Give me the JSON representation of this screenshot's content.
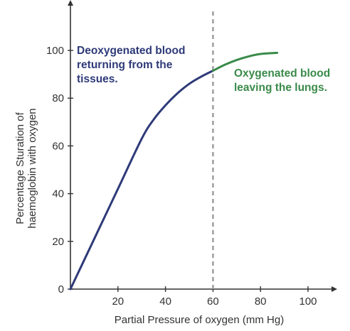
{
  "chart_data": {
    "type": "line",
    "xlabel": "Partial Pressure of oxygen (mm Hg)",
    "ylabel_lines": [
      "Percentage Sturation of",
      "haemoglobin with oxygen"
    ],
    "xlim": [
      0,
      110
    ],
    "ylim": [
      0,
      115
    ],
    "x_ticks": [
      20,
      40,
      60,
      80,
      100
    ],
    "y_ticks": [
      0,
      20,
      40,
      60,
      80,
      100
    ],
    "grid": false,
    "series": [
      {
        "color": "#2e3a78",
        "x": [
          0,
          10,
          20,
          30,
          35,
          40,
          45,
          50,
          55,
          60
        ],
        "y": [
          0,
          21,
          42,
          63,
          71,
          77,
          82,
          86,
          89,
          91.5
        ]
      },
      {
        "color": "#3a8a4a",
        "x": [
          60,
          65,
          70,
          75,
          80,
          87
        ],
        "y": [
          91.5,
          94,
          96,
          97.5,
          98.5,
          99
        ]
      }
    ],
    "reference_line": {
      "x": 60,
      "style": "dashed",
      "color": "#9a9a9a"
    },
    "annotations": [
      {
        "lines": [
          "Deoxygenated blood",
          "returning from the",
          "tissues."
        ],
        "color": "#2e3a78"
      },
      {
        "lines": [
          "Oxygenated blood",
          "leaving the lungs."
        ],
        "color": "#3a8a4a"
      }
    ]
  }
}
